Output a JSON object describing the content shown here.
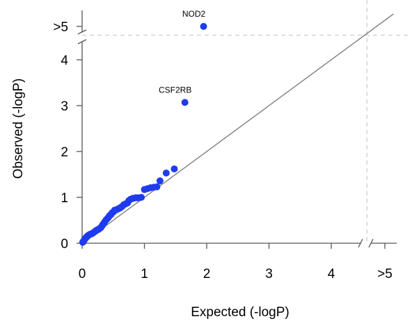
{
  "chart_data": {
    "type": "scatter",
    "xlabel": "Expected (-logP)",
    "ylabel": "Observed (-logP)",
    "xlim": [
      0,
      5
    ],
    "ylim": [
      0,
      5
    ],
    "x_ticks": [
      "0",
      "1",
      "2",
      "3",
      "4",
      ">5"
    ],
    "y_ticks": [
      "0",
      "1",
      "2",
      "3",
      "4",
      ">5"
    ],
    "axis_break_value": 4.55,
    "reference_line": "y = x",
    "grid": false,
    "colors": {
      "points": "#1f3bef",
      "reference_line": "#7f7f7f",
      "threshold_line": "#c8c8c8",
      "axes": "#555555"
    },
    "points": [
      {
        "x": 0.01,
        "y": 0.02
      },
      {
        "x": 0.02,
        "y": 0.04
      },
      {
        "x": 0.03,
        "y": 0.06
      },
      {
        "x": 0.04,
        "y": 0.08
      },
      {
        "x": 0.05,
        "y": 0.1
      },
      {
        "x": 0.06,
        "y": 0.12
      },
      {
        "x": 0.07,
        "y": 0.13
      },
      {
        "x": 0.08,
        "y": 0.15
      },
      {
        "x": 0.09,
        "y": 0.16
      },
      {
        "x": 0.1,
        "y": 0.17
      },
      {
        "x": 0.12,
        "y": 0.19
      },
      {
        "x": 0.14,
        "y": 0.2
      },
      {
        "x": 0.16,
        "y": 0.21
      },
      {
        "x": 0.18,
        "y": 0.23
      },
      {
        "x": 0.2,
        "y": 0.25
      },
      {
        "x": 0.22,
        "y": 0.27
      },
      {
        "x": 0.24,
        "y": 0.29
      },
      {
        "x": 0.26,
        "y": 0.3
      },
      {
        "x": 0.28,
        "y": 0.32
      },
      {
        "x": 0.3,
        "y": 0.34
      },
      {
        "x": 0.32,
        "y": 0.38
      },
      {
        "x": 0.34,
        "y": 0.42
      },
      {
        "x": 0.36,
        "y": 0.46
      },
      {
        "x": 0.38,
        "y": 0.5
      },
      {
        "x": 0.4,
        "y": 0.53
      },
      {
        "x": 0.42,
        "y": 0.56
      },
      {
        "x": 0.44,
        "y": 0.6
      },
      {
        "x": 0.46,
        "y": 0.62
      },
      {
        "x": 0.48,
        "y": 0.66
      },
      {
        "x": 0.5,
        "y": 0.68
      },
      {
        "x": 0.52,
        "y": 0.72
      },
      {
        "x": 0.55,
        "y": 0.73
      },
      {
        "x": 0.58,
        "y": 0.75
      },
      {
        "x": 0.61,
        "y": 0.77
      },
      {
        "x": 0.64,
        "y": 0.8
      },
      {
        "x": 0.67,
        "y": 0.84
      },
      {
        "x": 0.7,
        "y": 0.86
      },
      {
        "x": 0.73,
        "y": 0.88
      },
      {
        "x": 0.75,
        "y": 0.93
      },
      {
        "x": 0.78,
        "y": 0.96
      },
      {
        "x": 0.82,
        "y": 0.98
      },
      {
        "x": 0.86,
        "y": 0.99
      },
      {
        "x": 0.9,
        "y": 0.99
      },
      {
        "x": 0.95,
        "y": 1.0
      },
      {
        "x": 1.0,
        "y": 1.17
      },
      {
        "x": 1.05,
        "y": 1.19
      },
      {
        "x": 1.1,
        "y": 1.21
      },
      {
        "x": 1.15,
        "y": 1.22
      },
      {
        "x": 1.2,
        "y": 1.23
      },
      {
        "x": 1.25,
        "y": 1.36
      },
      {
        "x": 1.35,
        "y": 1.53
      },
      {
        "x": 1.48,
        "y": 1.62
      },
      {
        "x": 1.65,
        "y": 3.07,
        "label": "CSF2RB"
      },
      {
        "x": 1.95,
        "y": 5.0,
        "label": "NOD2"
      }
    ]
  }
}
